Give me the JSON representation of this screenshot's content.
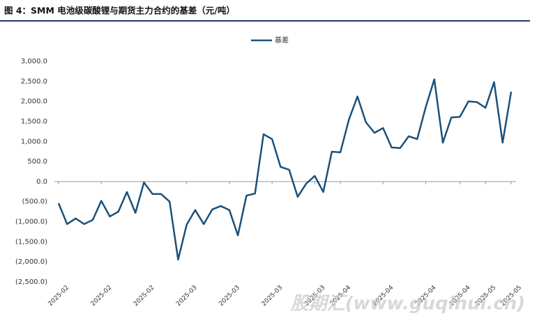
{
  "chart_data": {
    "type": "line",
    "title": "图 4：SMM 电池级碳酸锂与期货主力合约的基差（元/吨）",
    "watermark": "股期汇(www.guqihui.cn)",
    "categories": [
      "2025-02",
      null,
      null,
      null,
      null,
      "2025-02",
      null,
      null,
      null,
      null,
      "2025-02",
      null,
      null,
      null,
      null,
      "2025-03",
      null,
      null,
      null,
      null,
      "2025-03",
      null,
      null,
      null,
      null,
      "2025-03",
      null,
      null,
      null,
      null,
      "2025-03",
      null,
      null,
      "2025-04",
      null,
      null,
      null,
      null,
      "2025-04",
      null,
      null,
      null,
      null,
      "2025-04",
      null,
      null,
      null,
      "2025-04",
      null,
      null,
      "2025-05",
      null,
      null,
      "2025-05"
    ],
    "series": [
      {
        "name": "基差",
        "color": "#1b5079",
        "values": [
          -540,
          -1060,
          -920,
          -1060,
          -955,
          -480,
          -870,
          -750,
          -260,
          -780,
          -20,
          -310,
          -310,
          -500,
          -1945,
          -1075,
          -710,
          -1060,
          -695,
          -610,
          -710,
          -1340,
          -350,
          -300,
          1180,
          1060,
          365,
          295,
          -380,
          -50,
          140,
          -260,
          745,
          730,
          1545,
          2120,
          1475,
          1215,
          1335,
          850,
          835,
          1130,
          1060,
          1860,
          2550,
          970,
          1600,
          1615,
          2000,
          1980,
          1840,
          2480,
          970,
          2240
        ]
      }
    ],
    "ylim": [
      -2500,
      3000
    ],
    "yticks": [
      {
        "value": -2500,
        "label": "(2,500.0)"
      },
      {
        "value": -2000,
        "label": "(2,000.0)"
      },
      {
        "value": -1500,
        "label": "(1,500.0)"
      },
      {
        "value": -1000,
        "label": "(1,000.0)"
      },
      {
        "value": -500,
        "label": "(500.0)"
      },
      {
        "value": 0,
        "label": "0.0"
      },
      {
        "value": 500,
        "label": "500.0"
      },
      {
        "value": 1000,
        "label": "1,000.0"
      },
      {
        "value": 1500,
        "label": "1,500.0"
      },
      {
        "value": 2000,
        "label": "2,000.0"
      },
      {
        "value": 2500,
        "label": "2,500.0"
      },
      {
        "value": 3000,
        "label": "3,000.0"
      }
    ],
    "negative_tick_color": "#c00000",
    "grid": false,
    "legend": "top"
  }
}
